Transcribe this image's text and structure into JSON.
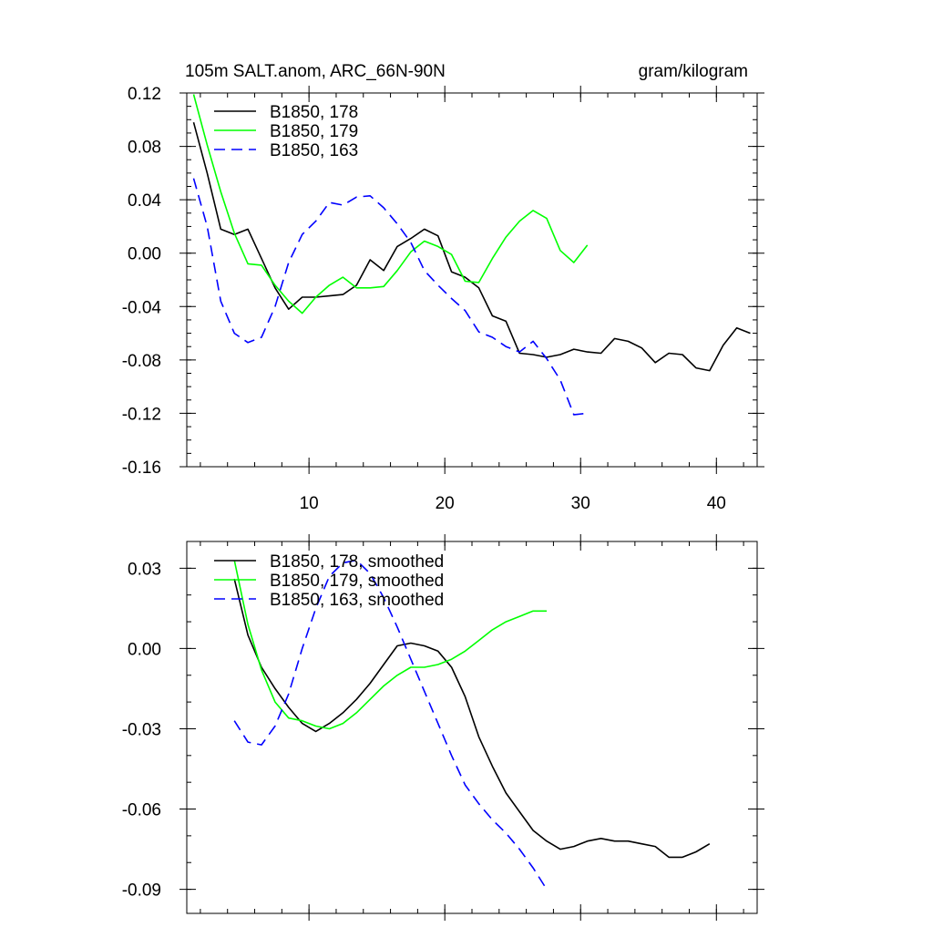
{
  "title_left": "105m SALT.anom, ARC_66N-90N",
  "title_right": "gram/kilogram",
  "colors": {
    "s178": "#000000",
    "s179": "#00ff00",
    "s163": "#0000ff"
  },
  "chart_data": [
    {
      "type": "line",
      "name": "raw",
      "xlim": [
        1,
        43
      ],
      "ylim": [
        -0.16,
        0.12
      ],
      "xticks": [
        10,
        20,
        30,
        40
      ],
      "xtick_labels": [
        "10",
        "20",
        "30",
        "40"
      ],
      "yticks": [
        0.12,
        0.08,
        0.04,
        0.0,
        -0.04,
        -0.08,
        -0.12,
        -0.16
      ],
      "ytick_labels": [
        "0.12",
        "0.08",
        "0.04",
        "0.00",
        "-0.04",
        "-0.08",
        "-0.12",
        "-0.16"
      ],
      "legend_position": "top-left",
      "series": [
        {
          "name": "B1850, 178",
          "color_key": "s178",
          "dash": "solid",
          "x": [
            1.5,
            2.5,
            3.5,
            4.5,
            5.5,
            6.5,
            7.5,
            8.5,
            9.5,
            10.5,
            11.5,
            12.5,
            13.5,
            14.5,
            15.5,
            16.5,
            17.5,
            18.5,
            19.5,
            20.5,
            21.5,
            22.5,
            23.5,
            24.5,
            25.5,
            26.5,
            27.5,
            28.5,
            29.5,
            30.5,
            31.5,
            32.5,
            33.5,
            34.5,
            35.5,
            36.5,
            37.5,
            38.5,
            39.5,
            40.5,
            41.5,
            42.5
          ],
          "values": [
            0.098,
            0.06,
            0.018,
            0.014,
            0.018,
            -0.004,
            -0.026,
            -0.042,
            -0.033,
            -0.033,
            -0.032,
            -0.031,
            -0.024,
            -0.005,
            -0.013,
            0.005,
            0.011,
            0.018,
            0.013,
            -0.014,
            -0.018,
            -0.026,
            -0.047,
            -0.051,
            -0.075,
            -0.076,
            -0.078,
            -0.076,
            -0.072,
            -0.074,
            -0.075,
            -0.064,
            -0.066,
            -0.071,
            -0.082,
            -0.075,
            -0.076,
            -0.086,
            -0.088,
            -0.069,
            -0.056,
            -0.06
          ]
        },
        {
          "name": "B1850, 179",
          "color_key": "s179",
          "dash": "solid",
          "x": [
            1.5,
            2.5,
            3.5,
            4.5,
            5.5,
            6.5,
            7.5,
            8.5,
            9.5,
            10.5,
            11.5,
            12.5,
            13.5,
            14.5,
            15.5,
            16.5,
            17.5,
            18.5,
            19.5,
            20.5,
            21.5,
            22.5,
            23.5,
            24.5,
            25.5,
            26.5,
            27.5,
            28.5,
            29.5,
            30.5
          ],
          "values": [
            0.119,
            0.081,
            0.046,
            0.015,
            -0.008,
            -0.009,
            -0.024,
            -0.036,
            -0.045,
            -0.033,
            -0.024,
            -0.018,
            -0.026,
            -0.026,
            -0.025,
            -0.013,
            0.001,
            0.009,
            0.005,
            -0.001,
            -0.021,
            -0.022,
            -0.004,
            0.012,
            0.024,
            0.032,
            0.026,
            0.002,
            -0.007,
            0.006
          ]
        },
        {
          "name": "B1850, 163",
          "color_key": "s163",
          "dash": "dashed",
          "x": [
            1.5,
            2.5,
            3.5,
            4.5,
            5.5,
            6.5,
            7.5,
            8.5,
            9.5,
            10.5,
            11.5,
            12.5,
            13.5,
            14.5,
            15.5,
            16.5,
            17.5,
            18.5,
            19.5,
            20.5,
            21.5,
            22.5,
            23.5,
            24.5,
            25.5,
            26.5,
            27.5,
            28.5,
            29.5,
            30.5
          ],
          "values": [
            0.056,
            0.02,
            -0.036,
            -0.06,
            -0.067,
            -0.063,
            -0.04,
            -0.007,
            0.014,
            0.024,
            0.038,
            0.036,
            0.042,
            0.043,
            0.034,
            0.022,
            0.008,
            -0.013,
            -0.024,
            -0.034,
            -0.043,
            -0.059,
            -0.063,
            -0.07,
            -0.074,
            -0.066,
            -0.079,
            -0.095,
            -0.121,
            -0.12
          ]
        }
      ]
    },
    {
      "type": "line",
      "name": "smoothed",
      "xlim": [
        1,
        43
      ],
      "ylim": [
        -0.099,
        0.04
      ],
      "xticks": [
        10,
        20,
        30,
        40
      ],
      "yticks": [
        0.03,
        0.0,
        -0.03,
        -0.06,
        -0.09
      ],
      "ytick_labels": [
        "0.03",
        "0.00",
        "-0.03",
        "-0.06",
        "-0.09"
      ],
      "legend_position": "top-left",
      "series": [
        {
          "name": "B1850, 178, smoothed",
          "color_key": "s178",
          "dash": "solid",
          "x": [
            4.5,
            5.5,
            6.5,
            7.5,
            8.5,
            9.5,
            10.5,
            11.5,
            12.5,
            13.5,
            14.5,
            15.5,
            16.5,
            17.5,
            18.5,
            19.5,
            20.5,
            21.5,
            22.5,
            23.5,
            24.5,
            25.5,
            26.5,
            27.5,
            28.5,
            29.5,
            30.5,
            31.5,
            32.5,
            33.5,
            34.5,
            35.5,
            36.5,
            37.5,
            38.5,
            39.5
          ],
          "values": [
            0.026,
            0.005,
            -0.007,
            -0.015,
            -0.022,
            -0.028,
            -0.031,
            -0.028,
            -0.024,
            -0.019,
            -0.013,
            -0.006,
            0.001,
            0.002,
            0.001,
            -0.001,
            -0.007,
            -0.018,
            -0.033,
            -0.044,
            -0.054,
            -0.061,
            -0.068,
            -0.072,
            -0.075,
            -0.074,
            -0.072,
            -0.071,
            -0.072,
            -0.072,
            -0.073,
            -0.074,
            -0.078,
            -0.078,
            -0.076,
            -0.073
          ]
        },
        {
          "name": "B1850, 179, smoothed",
          "color_key": "s179",
          "dash": "solid",
          "x": [
            4.5,
            5.5,
            6.5,
            7.5,
            8.5,
            9.5,
            10.5,
            11.5,
            12.5,
            13.5,
            14.5,
            15.5,
            16.5,
            17.5,
            18.5,
            19.5,
            20.5,
            21.5,
            22.5,
            23.5,
            24.5,
            25.5,
            26.5,
            27.5
          ],
          "values": [
            0.033,
            0.009,
            -0.008,
            -0.02,
            -0.026,
            -0.027,
            -0.029,
            -0.03,
            -0.028,
            -0.024,
            -0.019,
            -0.014,
            -0.01,
            -0.007,
            -0.007,
            -0.006,
            -0.004,
            -0.001,
            0.003,
            0.007,
            0.01,
            0.012,
            0.014,
            0.014
          ]
        },
        {
          "name": "B1850, 163, smoothed",
          "color_key": "s163",
          "dash": "dashed",
          "x": [
            4.5,
            5.5,
            6.5,
            7.5,
            8.5,
            9.5,
            10.5,
            11.5,
            12.5,
            13.5,
            14.5,
            15.5,
            16.5,
            17.5,
            18.5,
            19.5,
            20.5,
            21.5,
            22.5,
            23.5,
            24.5,
            25.5,
            26.5,
            27.5
          ],
          "values": [
            -0.027,
            -0.035,
            -0.036,
            -0.029,
            -0.017,
            0.0,
            0.015,
            0.027,
            0.032,
            0.033,
            0.028,
            0.019,
            0.008,
            -0.004,
            -0.016,
            -0.028,
            -0.04,
            -0.051,
            -0.058,
            -0.064,
            -0.069,
            -0.075,
            -0.082,
            -0.09
          ]
        }
      ]
    }
  ]
}
